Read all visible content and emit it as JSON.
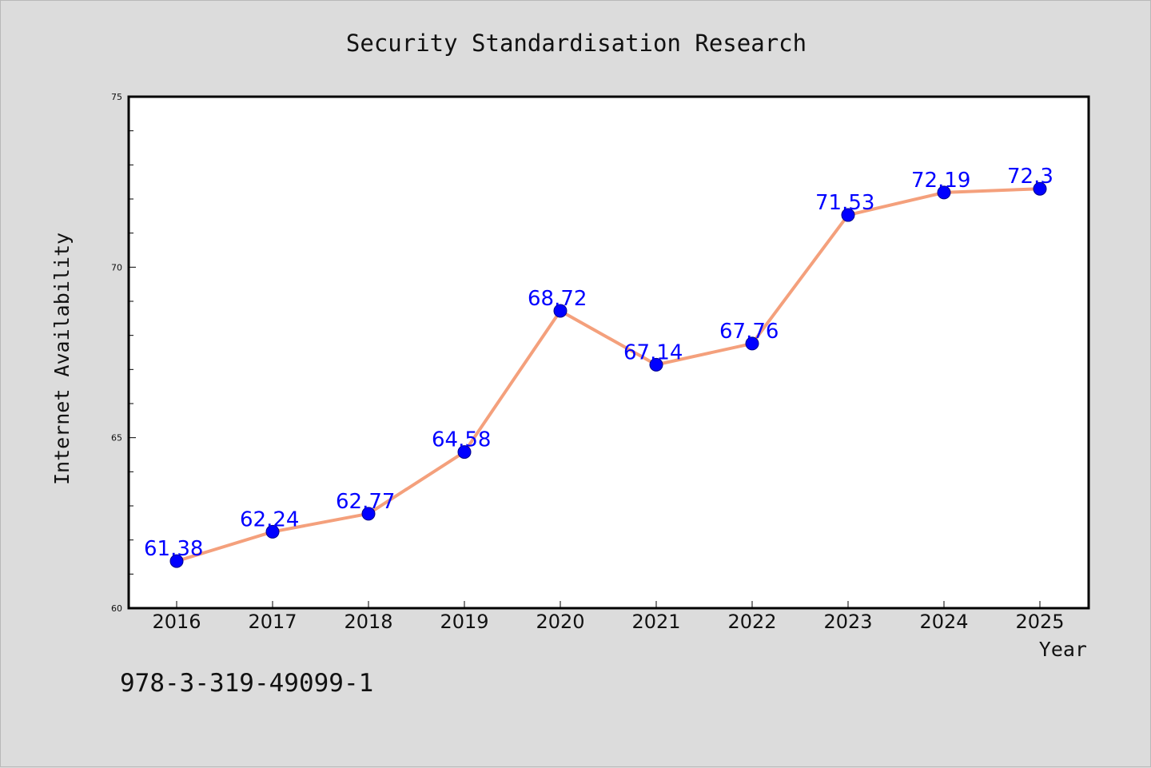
{
  "chart_data": {
    "type": "line",
    "title": "Security Standardisation Research",
    "xlabel": "Year",
    "ylabel": "Internet Availability",
    "categories": [
      "2016",
      "2017",
      "2018",
      "2019",
      "2020",
      "2021",
      "2022",
      "2023",
      "2024",
      "2025"
    ],
    "series": [
      {
        "values": [
          61.38,
          62.24,
          62.77,
          64.58,
          68.72,
          67.14,
          67.76,
          71.53,
          72.19,
          72.3
        ],
        "data_labels": [
          "61.38",
          "62.24",
          "62.77",
          "64.58",
          "68.72",
          "67.14",
          "67.76",
          "71.53",
          "72.19",
          "72.3"
        ]
      }
    ],
    "ylim": [
      60,
      75
    ],
    "yticks": [
      "60",
      "65",
      "70",
      "75"
    ],
    "grid": false,
    "line_color": "#f4a07c",
    "marker_color": "#0000ff",
    "label_color": "#0000ff",
    "footnote": "978-3-319-49099-1"
  }
}
